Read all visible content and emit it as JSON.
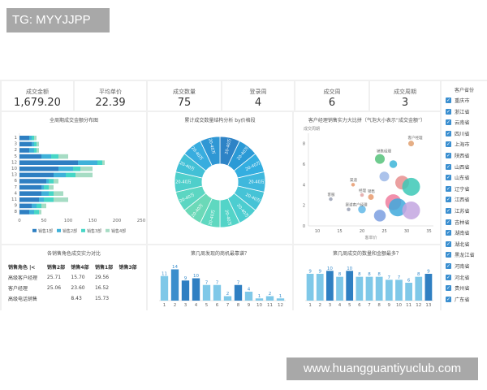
{
  "watermark_left": "TG: MYYJJPP",
  "watermark_right": "www.huangguantiyuclub.com",
  "kpis": [
    {
      "label": "成交金额",
      "value": "1,679.20"
    },
    {
      "label": "平均单价",
      "value": "22.39"
    },
    {
      "label": "成交数量",
      "value": "75"
    },
    {
      "label": "登录周",
      "value": "4"
    },
    {
      "label": "成交周",
      "value": "6"
    },
    {
      "label": "成交周期",
      "value": "3"
    }
  ],
  "province_panel": {
    "title": "客户省份",
    "items": [
      "重庆市",
      "浙江省",
      "云南省",
      "四川省",
      "上海市",
      "陕西省",
      "山西省",
      "山东省",
      "辽宁省",
      "江西省",
      "江苏省",
      "吉林省",
      "湖南省",
      "湖北省",
      "黑龙江省",
      "河南省",
      "河北省",
      "贵州省",
      "广东省"
    ]
  },
  "charts": {
    "hbar": {
      "title": "全周期成交金额分布图",
      "chart_data": {
        "type": "bar",
        "orientation": "horizontal",
        "stacked": true,
        "categories": [
          "1",
          "3",
          "2",
          "5",
          "12",
          "10",
          "13",
          "6",
          "7",
          "4",
          "11",
          "9",
          "8"
        ],
        "series": [
          {
            "name": "销售1部",
            "values": [
              20,
              25,
              20,
              45,
              120,
              80,
              70,
              55,
              45,
              45,
              40,
              25,
              20
            ],
            "color": "#2e7fc2"
          },
          {
            "name": "销售2部",
            "values": [
              5,
              5,
              10,
              20,
              40,
              30,
              25,
              5,
              5,
              15,
              10,
              10,
              10
            ],
            "color": "#3fb1d9"
          },
          {
            "name": "销售3部",
            "values": [
              5,
              5,
              5,
              15,
              10,
              15,
              20,
              10,
              10,
              10,
              20,
              10,
              10
            ],
            "color": "#46d6c6"
          },
          {
            "name": "销售4部",
            "values": [
              5,
              5,
              5,
              20,
              5,
              25,
              35,
              10,
              10,
              20,
              30,
              10,
              5
            ],
            "color": "#a6dcc4"
          }
        ],
        "x_ticks": [
          "0",
          "50",
          "100",
          "150",
          "200",
          "250"
        ],
        "xlim": [
          0,
          250
        ],
        "legend": "bottom"
      }
    },
    "pie": {
      "title": "累计成交数量结构分析 by价格段",
      "chart_data": {
        "type": "pie",
        "style": "sunburst",
        "slice_label": "20-40万",
        "inner_label": "销售1部",
        "slices": [
          1,
          1,
          1,
          1,
          1,
          1,
          1,
          1,
          1,
          1,
          1,
          1,
          1,
          1
        ],
        "colors": [
          "#2e83c6",
          "#2b9ad6",
          "#34aee0",
          "#3fb8dd",
          "#46c3d6",
          "#4ccdd0",
          "#53d4c8",
          "#5fd8c0",
          "#6bd9b8",
          "#5cd6c2",
          "#4fcfcb",
          "#42c0d6",
          "#38addf",
          "#2f97d4"
        ]
      }
    },
    "scatter": {
      "title": "客户经理销售实力大比拼（气泡大小表示“成交金额”）",
      "chart_data": {
        "type": "scatter",
        "style": "bubble",
        "ylabel": "成交周期",
        "xlabel": "客单价",
        "x_ticks": [
          "10",
          "15",
          "20",
          "25",
          "30",
          "35"
        ],
        "y_ticks": [
          "0",
          "2",
          "4",
          "6",
          "8"
        ],
        "xlim": [
          8,
          36
        ],
        "ylim": [
          0,
          9
        ],
        "points": [
          {
            "x": 31,
            "y": 8.0,
            "r": 2,
            "color": "#e0a070",
            "label": "客户经理"
          },
          {
            "x": 24,
            "y": 6.5,
            "r": 4,
            "color": "#55c27a",
            "label": "销售经理"
          },
          {
            "x": 27,
            "y": 6.0,
            "r": 3,
            "color": "#3db5d8",
            "label": ""
          },
          {
            "x": 25,
            "y": 4.8,
            "r": 4,
            "color": "#9db8e8",
            "label": ""
          },
          {
            "x": 29,
            "y": 4.2,
            "r": 6,
            "color": "#e88f8f",
            "label": ""
          },
          {
            "x": 31,
            "y": 3.8,
            "r": 8,
            "color": "#3cc8b6",
            "label": ""
          },
          {
            "x": 27,
            "y": 2.3,
            "r": 7,
            "color": "#f07d9d",
            "label": ""
          },
          {
            "x": 28,
            "y": 1.8,
            "r": 8,
            "color": "#3fa9dc",
            "label": ""
          },
          {
            "x": 31,
            "y": 1.5,
            "r": 8,
            "color": "#c3a6e0",
            "label": ""
          },
          {
            "x": 24,
            "y": 1.0,
            "r": 5,
            "color": "#7b9fe0",
            "label": ""
          },
          {
            "x": 20,
            "y": 1.6,
            "r": 3,
            "color": "#62b8e8",
            "label": ""
          },
          {
            "x": 18,
            "y": 4.0,
            "r": 1,
            "color": "#e79a6d",
            "label": "渠道"
          },
          {
            "x": 20,
            "y": 3.0,
            "r": 1,
            "color": "#e2a6a6",
            "label": "经理"
          },
          {
            "x": 22,
            "y": 2.8,
            "r": 2,
            "color": "#e79a6d",
            "label": "销售"
          },
          {
            "x": 13,
            "y": 2.6,
            "r": 1,
            "color": "#9aa1b5",
            "label": "客服"
          },
          {
            "x": 17,
            "y": 1.6,
            "r": 1,
            "color": "#9aa1b5",
            "label": "渠道客户经理"
          }
        ]
      }
    },
    "table": {
      "title": "各销售角色成交实力对比",
      "columns": [
        "销售角色 |<",
        "销售2部",
        "销售4部",
        "销售1部",
        "销售3部"
      ],
      "rows": [
        [
          "高级客户经理",
          "25.71",
          "15.70",
          "29.56",
          ""
        ],
        [
          "客户经理",
          "25.06",
          "23.60",
          "16.52",
          ""
        ],
        [
          "高级电话销售",
          "",
          "8.43",
          "15.73",
          ""
        ],
        [
          "",
          "",
          "",
          "",
          ""
        ]
      ]
    },
    "vbar1": {
      "title": "第几周发现的商机最靠谱？",
      "chart_data": {
        "type": "bar",
        "categories": [
          "1",
          "2",
          "3",
          "4",
          "5",
          "6",
          "7",
          "8",
          "9",
          "10",
          "11",
          "12"
        ],
        "values": [
          11,
          14,
          9,
          10,
          7,
          7,
          2,
          7,
          4,
          1,
          2,
          1
        ],
        "labels": [
          "11",
          "14",
          "9",
          "10",
          "7",
          "7",
          "2",
          "7",
          "4",
          "1",
          "2",
          "1"
        ],
        "colors": [
          "#7fc8e8",
          "#3a8dcc",
          "#2f7fc2",
          "#2f7fc2",
          "#7fc8e8",
          "#7fc8e8",
          "#7fc8e8",
          "#2f7fc2",
          "#7fc8e8",
          "#7fc8e8",
          "#7fc8e8",
          "#7fc8e8"
        ],
        "ylim": [
          0,
          16
        ]
      }
    },
    "vbar2": {
      "title": "第几周成交的数量和金额最多？",
      "chart_data": {
        "type": "bar",
        "categories": [
          "1",
          "2",
          "3",
          "4",
          "5",
          "6",
          "7",
          "8",
          "9",
          "10",
          "11",
          "12",
          "13"
        ],
        "values": [
          9,
          9,
          10,
          8,
          10,
          8,
          8,
          8,
          7,
          7,
          6,
          8,
          9
        ],
        "labels": [
          "9",
          "9",
          "10",
          "8",
          "10",
          "8",
          "8",
          "8",
          "7",
          "7",
          "6",
          "8",
          "9"
        ],
        "colors": [
          "#7fc8e8",
          "#7fc8e8",
          "#2f7fc2",
          "#7fc8e8",
          "#2f7fc2",
          "#7fc8e8",
          "#7fc8e8",
          "#7fc8e8",
          "#7fc8e8",
          "#7fc8e8",
          "#7fc8e8",
          "#7fc8e8",
          "#2f7fc2"
        ],
        "ylim": [
          0,
          12
        ]
      }
    }
  }
}
